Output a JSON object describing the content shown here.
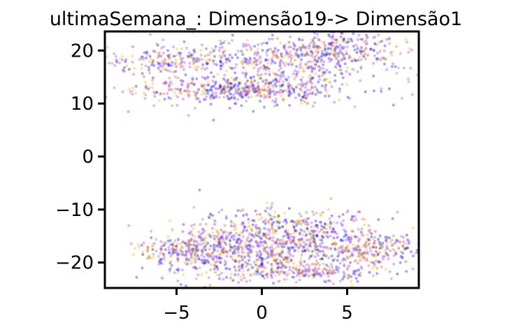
{
  "chart_data": {
    "type": "scatter",
    "title": "ultimaSemana_: Dimensão19-> Dimensão1",
    "xlabel": "",
    "ylabel": "",
    "xlim": [
      -9.2,
      9.2
    ],
    "ylim": [
      -24.8,
      23.6
    ],
    "xticks": [
      {
        "value": -5,
        "label": "−5"
      },
      {
        "value": 0,
        "label": "0"
      },
      {
        "value": 5,
        "label": "5"
      }
    ],
    "yticks": [
      {
        "value": 20,
        "label": "20"
      },
      {
        "value": 10,
        "label": "10"
      },
      {
        "value": 0,
        "label": "0"
      },
      {
        "value": -10,
        "label": "−10"
      },
      {
        "value": -20,
        "label": "−20"
      }
    ],
    "grid": false,
    "legend": "none",
    "point_colors": [
      "#9b30ff",
      "#0000ff",
      "#ffa500",
      "#b5651d",
      "#ff0000",
      "#808080",
      "#2e8b57",
      "#000000"
    ],
    "clusters": [
      {
        "cx": -1.0,
        "cy": 12.5,
        "sx": 3.2,
        "sy": 1.4,
        "n": 500
      },
      {
        "cx": 1.5,
        "cy": 18.5,
        "sx": 3.8,
        "sy": 2.2,
        "n": 500
      },
      {
        "cx": -5.8,
        "cy": 18.0,
        "sx": 1.9,
        "sy": 1.2,
        "n": 150
      },
      {
        "cx": 4.5,
        "cy": 20.5,
        "sx": 1.5,
        "sy": 1.5,
        "n": 140
      },
      {
        "cx": 1.5,
        "cy": -14.5,
        "sx": 2.6,
        "sy": 2.3,
        "n": 520
      },
      {
        "cx": -0.5,
        "cy": -19.0,
        "sx": 3.2,
        "sy": 2.2,
        "n": 500
      },
      {
        "cx": -4.5,
        "cy": -17.5,
        "sx": 1.4,
        "sy": 1.4,
        "n": 160
      },
      {
        "cx": 6.5,
        "cy": -17.5,
        "sx": 1.6,
        "sy": 1.5,
        "n": 200
      },
      {
        "cx": 3.0,
        "cy": -22.0,
        "sx": 2.0,
        "sy": 0.9,
        "n": 150
      }
    ]
  }
}
